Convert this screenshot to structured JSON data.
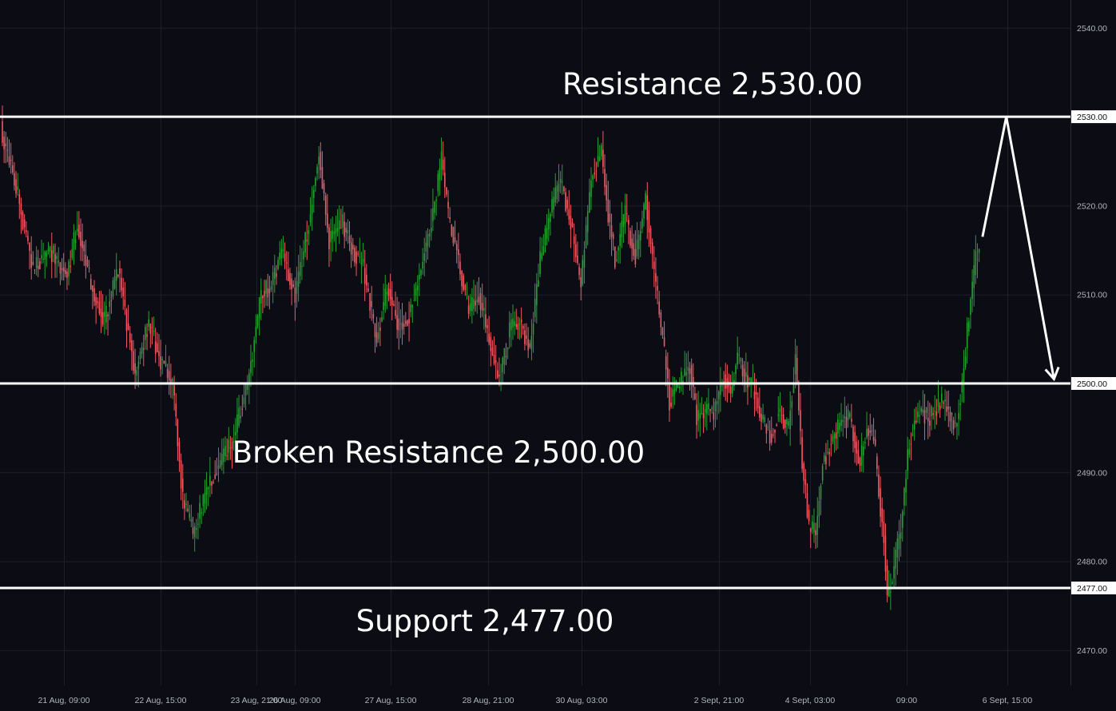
{
  "chart_data": {
    "type": "candlestick",
    "title": "",
    "xlabel": "",
    "ylabel": "",
    "ylim": [
      2466.5,
      2542.5
    ],
    "grid": true,
    "y_ticks": [
      "2540.00",
      "2530.00",
      "2520.00",
      "2510.00",
      "2500.00",
      "2490.00",
      "2480.00",
      "2477.00",
      "2470.00"
    ],
    "x_tick_labels": [
      "21 Aug, 09:00",
      "22 Aug, 15:00",
      "23 Aug, 21:00",
      "26 Aug, 09:00",
      "27 Aug, 15:00",
      "28 Aug, 21:00",
      "30 Aug, 03:00",
      "2 Sept, 21:00",
      "4 Sept, 03:00",
      "09:00",
      "6 Sept, 15:00"
    ],
    "levels": [
      {
        "name": "resistance",
        "value": 2530.0,
        "price_label": "2530.00",
        "label": "Resistance 2,530.00"
      },
      {
        "name": "broken-resistance",
        "value": 2500.0,
        "price_label": "2500.00",
        "label": "Broken Resistance 2,500.00"
      },
      {
        "name": "support",
        "value": 2477.0,
        "price_label": "2477.00",
        "label": "Support 2,477.00"
      }
    ],
    "close_path_anchors": [
      [
        0,
        2528
      ],
      [
        8,
        2522
      ],
      [
        18,
        2513
      ],
      [
        28,
        2515
      ],
      [
        38,
        2512
      ],
      [
        44,
        2518
      ],
      [
        52,
        2511
      ],
      [
        60,
        2507
      ],
      [
        68,
        2513
      ],
      [
        78,
        2501
      ],
      [
        86,
        2507
      ],
      [
        92,
        2503
      ],
      [
        100,
        2500
      ],
      [
        106,
        2487
      ],
      [
        112,
        2483
      ],
      [
        120,
        2488
      ],
      [
        128,
        2491
      ],
      [
        136,
        2494
      ],
      [
        144,
        2500
      ],
      [
        152,
        2510
      ],
      [
        158,
        2511
      ],
      [
        164,
        2515
      ],
      [
        172,
        2510
      ],
      [
        180,
        2518
      ],
      [
        186,
        2526
      ],
      [
        192,
        2516
      ],
      [
        200,
        2518
      ],
      [
        206,
        2515
      ],
      [
        212,
        2513
      ],
      [
        220,
        2505
      ],
      [
        226,
        2511
      ],
      [
        232,
        2507
      ],
      [
        238,
        2507
      ],
      [
        246,
        2513
      ],
      [
        252,
        2518
      ],
      [
        258,
        2525
      ],
      [
        262,
        2519
      ],
      [
        268,
        2514
      ],
      [
        274,
        2508
      ],
      [
        280,
        2510
      ],
      [
        286,
        2505
      ],
      [
        292,
        2500
      ],
      [
        298,
        2506
      ],
      [
        304,
        2507
      ],
      [
        310,
        2504
      ],
      [
        316,
        2514
      ],
      [
        322,
        2519
      ],
      [
        328,
        2523
      ],
      [
        334,
        2518
      ],
      [
        340,
        2511
      ],
      [
        346,
        2523
      ],
      [
        352,
        2526
      ],
      [
        356,
        2519
      ],
      [
        360,
        2514
      ],
      [
        366,
        2519
      ],
      [
        372,
        2514
      ],
      [
        378,
        2521
      ],
      [
        382,
        2514
      ],
      [
        388,
        2505
      ],
      [
        392,
        2498
      ],
      [
        398,
        2500
      ],
      [
        404,
        2502
      ],
      [
        408,
        2496
      ],
      [
        414,
        2497
      ],
      [
        418,
        2497
      ],
      [
        424,
        2501
      ],
      [
        428,
        2499
      ],
      [
        432,
        2503
      ],
      [
        436,
        2501
      ],
      [
        442,
        2499
      ],
      [
        446,
        2496
      ],
      [
        452,
        2494
      ],
      [
        456,
        2497
      ],
      [
        462,
        2495
      ],
      [
        466,
        2503
      ],
      [
        470,
        2491
      ],
      [
        474,
        2484
      ],
      [
        478,
        2483
      ],
      [
        482,
        2491
      ],
      [
        488,
        2494
      ],
      [
        494,
        2496
      ],
      [
        498,
        2496
      ],
      [
        504,
        2491
      ],
      [
        508,
        2495
      ],
      [
        512,
        2494
      ],
      [
        516,
        2486
      ],
      [
        518,
        2483
      ],
      [
        520,
        2476
      ],
      [
        524,
        2479
      ],
      [
        528,
        2484
      ],
      [
        532,
        2492
      ],
      [
        536,
        2496
      ],
      [
        540,
        2497
      ],
      [
        544,
        2496
      ],
      [
        548,
        2497
      ],
      [
        552,
        2498
      ],
      [
        556,
        2497
      ],
      [
        560,
        2495
      ],
      [
        564,
        2500
      ],
      [
        568,
        2508
      ],
      [
        572,
        2514
      ],
      [
        574,
        2515
      ]
    ],
    "projection_path": [
      [
        576,
        2516.5
      ],
      [
        590,
        2530
      ],
      [
        618,
        2500.5
      ]
    ]
  }
}
